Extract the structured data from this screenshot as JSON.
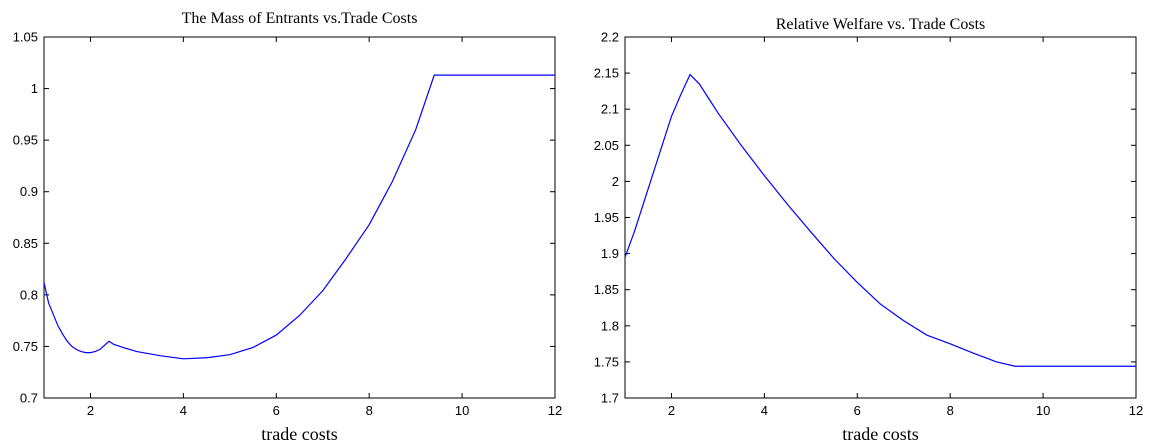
{
  "chart_data": [
    {
      "type": "line",
      "title": "The Mass of Entrants vs.Trade Costs",
      "xlabel": "trade costs",
      "ylabel": "",
      "xlim": [
        1,
        12
      ],
      "ylim": [
        0.7,
        1.05
      ],
      "xticks": [
        "2",
        "4",
        "6",
        "8",
        "10",
        "12"
      ],
      "yticks": [
        "0.7",
        "0.75",
        "0.8",
        "0.85",
        "0.9",
        "0.95",
        "1",
        "1.05"
      ],
      "grid": false,
      "color": "#0000ff",
      "series": [
        {
          "x": [
            1,
            1.1,
            1.2,
            1.3,
            1.4,
            1.5,
            1.6,
            1.7,
            1.8,
            1.9,
            2,
            2.1,
            2.2,
            2.3,
            2.4,
            2.5,
            2.7,
            3,
            3.5,
            4,
            4.5,
            5,
            5.5,
            6,
            6.5,
            7,
            7.5,
            8,
            8.5,
            9,
            9.4,
            10,
            11,
            12
          ],
          "y": [
            0.812,
            0.792,
            0.781,
            0.77,
            0.762,
            0.755,
            0.75,
            0.747,
            0.745,
            0.744,
            0.744,
            0.745,
            0.747,
            0.751,
            0.755,
            0.752,
            0.749,
            0.745,
            0.741,
            0.738,
            0.739,
            0.742,
            0.749,
            0.761,
            0.78,
            0.804,
            0.835,
            0.868,
            0.91,
            0.96,
            1.013,
            1.013,
            1.013,
            1.013
          ]
        }
      ]
    },
    {
      "type": "line",
      "title": "Relative Welfare vs. Trade Costs",
      "xlabel": "trade costs",
      "ylabel": "",
      "xlim": [
        1,
        12
      ],
      "ylim": [
        1.7,
        2.2
      ],
      "xticks": [
        "2",
        "4",
        "6",
        "8",
        "10",
        "12"
      ],
      "yticks": [
        "1.7",
        "1.75",
        "1.8",
        "1.85",
        "1.9",
        "1.95",
        "2",
        "2.05",
        "2.1",
        "2.15",
        "2.2"
      ],
      "grid": false,
      "color": "#0000ff",
      "series": [
        {
          "x": [
            1,
            1.2,
            1.4,
            1.6,
            1.8,
            2,
            2.2,
            2.4,
            2.6,
            2.8,
            3,
            3.5,
            4,
            4.5,
            5,
            5.5,
            6,
            6.5,
            7,
            7.5,
            8,
            8.5,
            9,
            9.4,
            10,
            11,
            12
          ],
          "y": [
            1.895,
            1.93,
            1.97,
            2.01,
            2.05,
            2.09,
            2.12,
            2.148,
            2.135,
            2.115,
            2.095,
            2.05,
            2.008,
            1.968,
            1.93,
            1.893,
            1.86,
            1.83,
            1.807,
            1.787,
            1.775,
            1.762,
            1.75,
            1.744,
            1.744,
            1.744,
            1.744
          ]
        }
      ]
    }
  ]
}
